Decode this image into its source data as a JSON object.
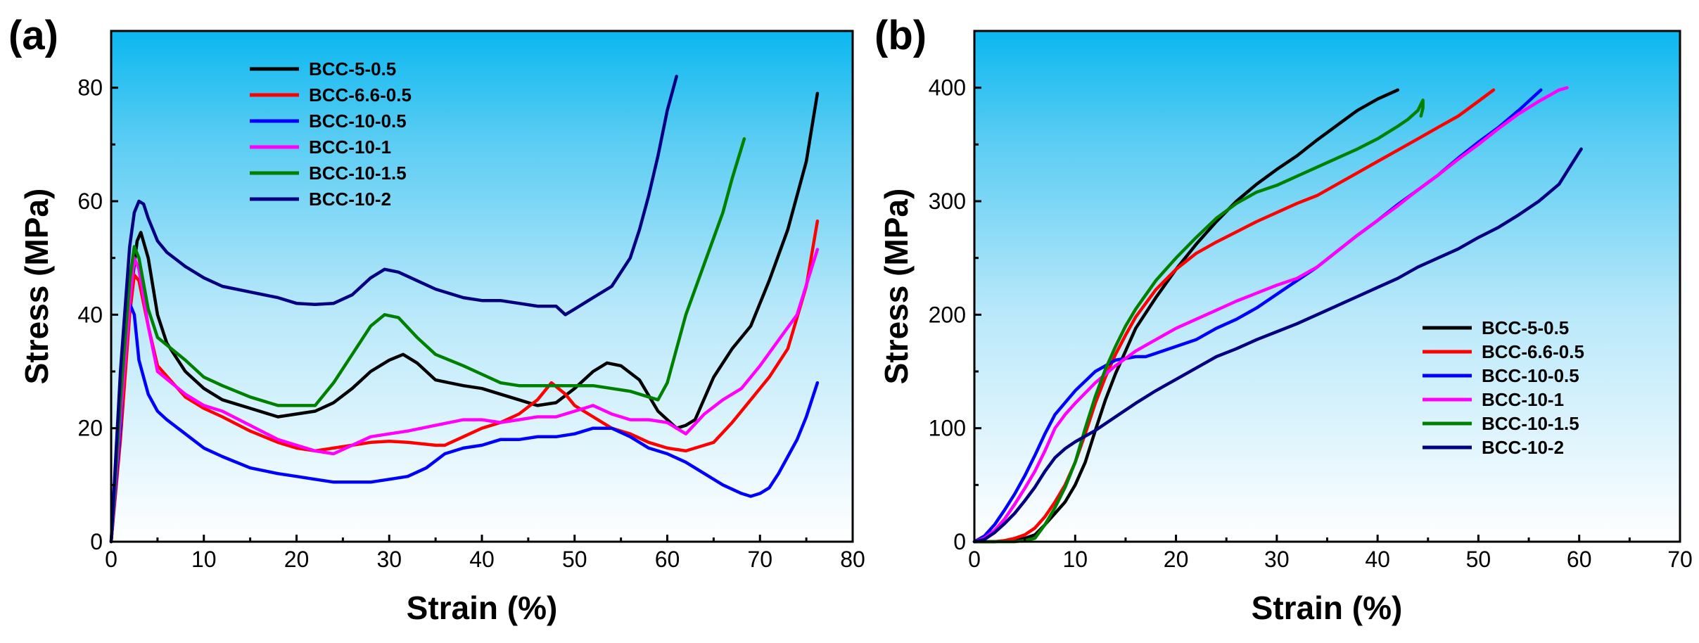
{
  "chart_data": [
    {
      "type": "line",
      "panel_label": "(a)",
      "xlabel": "Strain (%)",
      "ylabel": "Stress (MPa)",
      "xlim": [
        0,
        80
      ],
      "ylim": [
        0,
        90
      ],
      "xticks": [
        0,
        10,
        20,
        30,
        40,
        50,
        60,
        70,
        80
      ],
      "yticks": [
        0,
        20,
        40,
        60,
        80
      ],
      "xtick_labels": [
        "0",
        "10",
        "20",
        "30",
        "40",
        "50",
        "60",
        "70",
        "80"
      ],
      "ytick_labels": [
        "0",
        "20",
        "40",
        "60",
        "80"
      ],
      "legend_position": "top-left",
      "series": [
        {
          "name": "BCC-5-0.5",
          "color": "#000000",
          "x": [
            0,
            1,
            2,
            2.8,
            3.2,
            4,
            5,
            6,
            8,
            10,
            12,
            15,
            18,
            20,
            22,
            24,
            26,
            28,
            30,
            31.5,
            33,
            35,
            38,
            40,
            42,
            44,
            46,
            48,
            50,
            52,
            53.5,
            55,
            57,
            59,
            61,
            62,
            63,
            65,
            67,
            69,
            71,
            73,
            75,
            76.2
          ],
          "y": [
            0,
            20,
            42,
            53,
            54.5,
            50,
            40,
            35,
            30,
            27,
            25,
            23.5,
            22,
            22.5,
            23,
            24.5,
            27,
            30,
            32,
            33,
            31.5,
            28.5,
            27.5,
            27,
            26,
            25,
            24,
            24.5,
            27,
            30,
            31.5,
            31,
            28.5,
            23,
            20,
            20.5,
            21.5,
            29,
            34,
            38,
            46,
            55,
            67,
            79
          ]
        },
        {
          "name": "BCC-6.6-0.5",
          "color": "#ff0000",
          "x": [
            0,
            1,
            2,
            2.5,
            3,
            4,
            5,
            8,
            10,
            12,
            15,
            18,
            20,
            22,
            24,
            26,
            28,
            30,
            32,
            35,
            36,
            38,
            40,
            42,
            44,
            46,
            47.5,
            49,
            50,
            52,
            54,
            56,
            58,
            60,
            62,
            64,
            65,
            67,
            69,
            71,
            73,
            75,
            76.2
          ],
          "y": [
            0,
            18,
            40,
            47,
            46,
            38,
            31,
            25.5,
            23.5,
            22,
            19.5,
            17.5,
            16.5,
            16,
            16.5,
            17,
            17.5,
            17.7,
            17.5,
            17,
            17,
            18.5,
            20,
            21,
            22.5,
            25,
            28,
            26,
            24,
            22,
            20,
            19,
            17.5,
            16.5,
            16,
            17,
            17.5,
            21,
            25,
            29,
            34,
            45,
            56.5
          ]
        },
        {
          "name": "BCC-10-0.5",
          "color": "#0000ff",
          "x": [
            0,
            1,
            1.5,
            2,
            2.5,
            3,
            4,
            5,
            6,
            8,
            10,
            12,
            15,
            18,
            20,
            22,
            24,
            26,
            28,
            30,
            32,
            34,
            36,
            38,
            40,
            42,
            44,
            46,
            48,
            50,
            52,
            54,
            56,
            58,
            60,
            62,
            64,
            66,
            68,
            69,
            70,
            71,
            72,
            73,
            74,
            75,
            76.2
          ],
          "y": [
            0,
            20,
            35,
            42,
            40,
            32,
            26,
            23,
            21.5,
            19,
            16.5,
            15,
            13,
            12,
            11.5,
            11,
            10.5,
            10.5,
            10.5,
            11,
            11.5,
            13,
            15.5,
            16.5,
            17,
            18,
            18,
            18.5,
            18.5,
            19,
            20,
            20,
            18.5,
            16.5,
            15.5,
            14,
            12,
            10,
            8.5,
            8,
            8.5,
            9.5,
            12,
            15,
            18,
            22,
            28
          ]
        },
        {
          "name": "BCC-10-1",
          "color": "#ff00ff",
          "x": [
            0,
            1,
            2,
            2.5,
            3,
            4,
            5,
            8,
            10,
            12,
            15,
            18,
            20,
            22,
            24,
            26,
            28,
            30,
            32,
            35,
            38,
            40,
            42,
            44,
            46,
            48,
            50,
            52,
            54,
            56,
            58,
            60,
            62,
            64,
            66,
            68,
            70,
            72,
            74,
            76.2
          ],
          "y": [
            0,
            22,
            42,
            50,
            48,
            38,
            30,
            26,
            24,
            23,
            20.5,
            18,
            17,
            16,
            15.5,
            17,
            18.5,
            19,
            19.5,
            20.5,
            21.5,
            21.5,
            21,
            21.5,
            22,
            22,
            23,
            24,
            22.5,
            21.5,
            21.5,
            21,
            19,
            22.5,
            25,
            27,
            31,
            35.5,
            40,
            51.5
          ]
        },
        {
          "name": "BCC-10-1.5",
          "color": "#008000",
          "x": [
            0,
            1,
            2,
            2.5,
            3,
            4,
            5,
            8,
            10,
            12,
            15,
            18,
            20,
            22,
            24,
            26,
            28,
            29.5,
            31,
            33,
            35,
            38,
            40,
            42,
            44,
            46,
            48,
            50,
            52,
            54,
            56,
            58,
            59,
            60,
            62,
            64,
            66,
            67,
            68.3
          ],
          "y": [
            0,
            25,
            46,
            52,
            50,
            41,
            36,
            32,
            29,
            27.5,
            25.5,
            24,
            24,
            24,
            28,
            33,
            38,
            40,
            39.5,
            36,
            33,
            31,
            29.5,
            28,
            27.5,
            27.5,
            27.5,
            27.5,
            27.5,
            27,
            26.5,
            25.5,
            25,
            28,
            40,
            49,
            58,
            64,
            71
          ]
        },
        {
          "name": "BCC-10-2",
          "color": "#000080",
          "x": [
            0,
            1,
            2,
            2.5,
            3,
            3.5,
            4,
            5,
            6,
            8,
            10,
            12,
            15,
            18,
            20,
            22,
            24,
            26,
            28,
            29.5,
            31,
            33,
            35,
            38,
            40,
            42,
            44,
            46,
            48,
            49,
            50,
            52,
            54,
            56,
            57,
            58,
            59,
            60,
            61
          ],
          "y": [
            0,
            30,
            52,
            58,
            60,
            59.5,
            57,
            53,
            51,
            48.5,
            46.5,
            45,
            44,
            43,
            42,
            41.8,
            42,
            43.5,
            46.5,
            48,
            47.5,
            46,
            44.5,
            43,
            42.5,
            42.5,
            42,
            41.5,
            41.5,
            40,
            41,
            43,
            45,
            50,
            55,
            61,
            68,
            76,
            82
          ]
        }
      ]
    },
    {
      "type": "line",
      "panel_label": "(b)",
      "xlabel": "Strain (%)",
      "ylabel": "Stress (MPa)",
      "xlim": [
        0,
        70
      ],
      "ylim": [
        0,
        450
      ],
      "xticks": [
        0,
        10,
        20,
        30,
        40,
        50,
        60,
        70
      ],
      "yticks": [
        0,
        100,
        200,
        300,
        400
      ],
      "xtick_labels": [
        "0",
        "10",
        "20",
        "30",
        "40",
        "50",
        "60",
        "70"
      ],
      "ytick_labels": [
        "0",
        "100",
        "200",
        "300",
        "400"
      ],
      "legend_position": "bottom-right",
      "series": [
        {
          "name": "BCC-5-0.5",
          "color": "#000000",
          "x": [
            0,
            2,
            4,
            5,
            6,
            7,
            8,
            9,
            10,
            11,
            12,
            13,
            14,
            15,
            16,
            18,
            20,
            22,
            24,
            26,
            28,
            30,
            32,
            34,
            36,
            38,
            40,
            42
          ],
          "y": [
            0,
            0,
            1,
            3,
            6,
            15,
            25,
            35,
            50,
            70,
            98,
            125,
            148,
            168,
            188,
            215,
            240,
            262,
            282,
            300,
            315,
            328,
            340,
            354,
            367,
            380,
            390,
            398
          ]
        },
        {
          "name": "BCC-6.6-0.5",
          "color": "#ff0000",
          "x": [
            0,
            2,
            3,
            4,
            5,
            6,
            7,
            8,
            9,
            10,
            11,
            12,
            13,
            14,
            15,
            16,
            18,
            20,
            22,
            24,
            26,
            28,
            30,
            32,
            34,
            36,
            38,
            40,
            42,
            44,
            46,
            48,
            50,
            51.5
          ],
          "y": [
            0,
            0,
            1,
            3,
            6,
            12,
            22,
            35,
            50,
            70,
            95,
            122,
            145,
            165,
            182,
            198,
            222,
            240,
            254,
            264,
            273,
            282,
            290,
            298,
            305,
            315,
            325,
            335,
            345,
            355,
            365,
            375,
            388,
            398
          ]
        },
        {
          "name": "BCC-10-0.5",
          "color": "#0000ff",
          "x": [
            0,
            1,
            2,
            3,
            4,
            5,
            6,
            7,
            8,
            10,
            12,
            14,
            16,
            17,
            18,
            20,
            22,
            24,
            26,
            28,
            30,
            32,
            34,
            36,
            38,
            40,
            42,
            44,
            46,
            48,
            50,
            52,
            54,
            56.2
          ],
          "y": [
            0,
            5,
            15,
            28,
            42,
            58,
            76,
            95,
            112,
            133,
            150,
            160,
            163,
            163,
            166,
            172,
            178,
            188,
            196,
            206,
            218,
            230,
            242,
            256,
            270,
            283,
            297,
            310,
            323,
            338,
            352,
            365,
            380,
            398
          ]
        },
        {
          "name": "BCC-10-1",
          "color": "#ff00ff",
          "x": [
            0,
            1,
            2,
            3,
            4,
            5,
            6,
            7,
            8,
            9,
            10,
            12,
            14,
            16,
            18,
            20,
            22,
            24,
            26,
            28,
            30,
            32,
            34,
            36,
            38,
            40,
            42,
            44,
            46,
            48,
            50,
            52,
            54,
            56,
            58,
            58.8
          ],
          "y": [
            0,
            3,
            10,
            20,
            33,
            47,
            62,
            80,
            100,
            112,
            122,
            140,
            155,
            168,
            178,
            188,
            196,
            204,
            212,
            219,
            226,
            232,
            242,
            256,
            270,
            283,
            296,
            310,
            323,
            337,
            350,
            364,
            377,
            388,
            398,
            400
          ]
        },
        {
          "name": "BCC-10-1.5",
          "color": "#008000",
          "x": [
            0,
            4,
            5,
            6,
            7,
            8,
            9,
            10,
            11,
            12,
            13,
            14,
            15,
            16,
            18,
            20,
            22,
            24,
            26,
            28,
            30,
            32,
            34,
            36,
            38,
            40,
            42,
            43,
            44,
            44.5,
            44.5,
            44.3
          ],
          "y": [
            0,
            0,
            1,
            3,
            15,
            30,
            48,
            70,
            100,
            128,
            152,
            172,
            190,
            205,
            230,
            250,
            268,
            285,
            298,
            308,
            314,
            322,
            330,
            338,
            346,
            355,
            366,
            372,
            380,
            389,
            382,
            375
          ]
        },
        {
          "name": "BCC-10-2",
          "color": "#000080",
          "x": [
            0,
            1,
            2,
            3,
            4,
            5,
            6,
            7,
            8,
            9,
            10,
            12,
            14,
            16,
            18,
            20,
            22,
            24,
            26,
            28,
            30,
            32,
            34,
            36,
            38,
            40,
            42,
            44,
            46,
            48,
            50,
            52,
            54,
            56,
            58,
            60.2
          ],
          "y": [
            0,
            2,
            8,
            16,
            25,
            36,
            48,
            62,
            74,
            82,
            88,
            98,
            110,
            122,
            133,
            143,
            153,
            163,
            170,
            178,
            185,
            192,
            200,
            208,
            216,
            224,
            232,
            242,
            250,
            258,
            268,
            277,
            288,
            300,
            315,
            346
          ]
        }
      ]
    }
  ]
}
